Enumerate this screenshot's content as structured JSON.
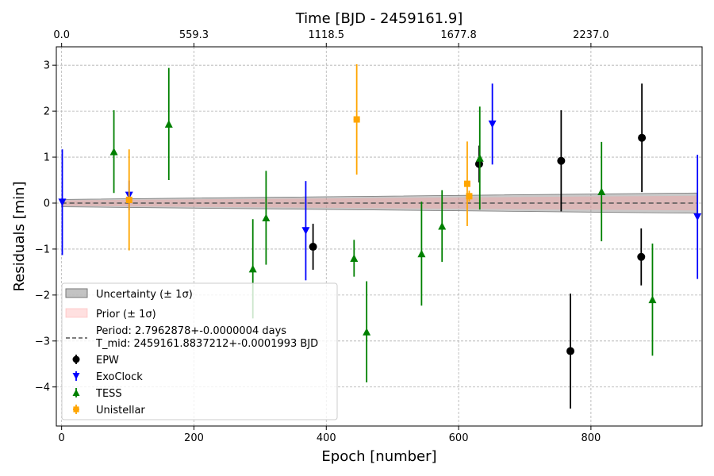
{
  "chart_data": {
    "type": "scatter",
    "title": "",
    "xlabel": "Epoch [number]",
    "ylabel": "Residuals [min]",
    "top_xlabel": "Time [BJD - 2459161.9]",
    "xlim": [
      -8,
      968
    ],
    "ylim": [
      -4.85,
      3.4
    ],
    "x_ticks": [
      0,
      200,
      400,
      600,
      800
    ],
    "y_ticks": [
      3,
      2,
      1,
      0,
      -1,
      -2,
      -3,
      -4
    ],
    "y_tick_labels": [
      "3",
      "2",
      "1",
      "0",
      "−1",
      "−2",
      "−3",
      "−4"
    ],
    "top_ticks": [
      {
        "epoch": 0,
        "label": "0.0"
      },
      {
        "epoch": 200,
        "label": "559.3"
      },
      {
        "epoch": 400,
        "label": "1118.5"
      },
      {
        "epoch": 600,
        "label": "1677.8"
      },
      {
        "epoch": 800,
        "label": "2237.0"
      }
    ],
    "grid": true,
    "legend_position": "lower-left",
    "model": {
      "zero_line_color": "#555555",
      "uncertainty": {
        "label": "Uncertainty (± 1σ)",
        "color": "#888888",
        "half_width_start": 0.08,
        "half_width_end": 0.22
      },
      "prior": {
        "label": "Prior (± 1σ)",
        "color": "#ff9999"
      },
      "period_label": "Period: 2.7962878+-0.0000004 days",
      "tmid_label": "T_mid: 2459161.8837212+-0.0001993 BJD"
    },
    "series": [
      {
        "name": "EPW",
        "color": "#000000",
        "marker": "circle",
        "points": [
          {
            "x": 380,
            "y": -0.95,
            "err": 0.5
          },
          {
            "x": 631,
            "y": 0.85,
            "err": 0.4
          },
          {
            "x": 755,
            "y": 0.92,
            "err": 1.1
          },
          {
            "x": 769,
            "y": -3.22,
            "err": 1.25
          },
          {
            "x": 876,
            "y": -1.17,
            "err": 0.62
          },
          {
            "x": 877,
            "y": 1.42,
            "err": 1.18
          }
        ]
      },
      {
        "name": "ExoClock",
        "color": "#0000ff",
        "marker": "triangle-down",
        "points": [
          {
            "x": 1,
            "y": 0.02,
            "err": 1.15
          },
          {
            "x": 102,
            "y": 0.17,
            "err": 0.32
          },
          {
            "x": 369,
            "y": -0.6,
            "err": 1.08
          },
          {
            "x": 651,
            "y": 1.72,
            "err": 0.88
          },
          {
            "x": 961,
            "y": -0.3,
            "err": 1.35
          }
        ]
      },
      {
        "name": "TESS",
        "color": "#008000",
        "marker": "triangle-up",
        "points": [
          {
            "x": 79,
            "y": 1.12,
            "err": 0.9
          },
          {
            "x": 162,
            "y": 1.72,
            "err": 1.22
          },
          {
            "x": 289,
            "y": -1.43,
            "err": 1.08
          },
          {
            "x": 309,
            "y": -0.32,
            "err": 1.02
          },
          {
            "x": 442,
            "y": -1.2,
            "err": 0.4
          },
          {
            "x": 461,
            "y": -2.8,
            "err": 1.1
          },
          {
            "x": 544,
            "y": -1.1,
            "err": 1.13
          },
          {
            "x": 575,
            "y": -0.5,
            "err": 0.78
          },
          {
            "x": 632,
            "y": 0.98,
            "err": 1.12
          },
          {
            "x": 816,
            "y": 0.25,
            "err": 1.08
          },
          {
            "x": 893,
            "y": -2.1,
            "err": 1.22
          }
        ]
      },
      {
        "name": "Unistellar",
        "color": "#ffa500",
        "marker": "square",
        "points": [
          {
            "x": 102,
            "y": 0.07,
            "err": 1.1
          },
          {
            "x": 446,
            "y": 1.82,
            "err": 1.2
          },
          {
            "x": 613,
            "y": 0.42,
            "err": 0.92
          },
          {
            "x": 616,
            "y": 0.15,
            "err": 0.12
          }
        ]
      }
    ]
  }
}
